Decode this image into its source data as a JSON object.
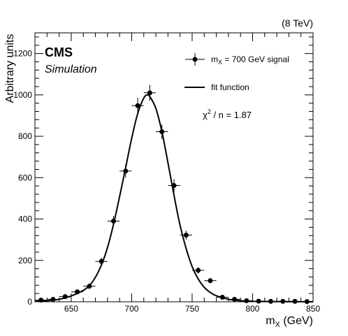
{
  "chart_data": {
    "type": "scatter",
    "energy_label": "(8 TeV)",
    "experiment_label": "CMS",
    "experiment_sublabel": "Simulation",
    "xlabel": "m",
    "xlabel_sub": "X",
    "xlabel_unit": "(GeV)",
    "ylabel": "Arbitrary units",
    "xlim": [
      620,
      850
    ],
    "ylim": [
      0,
      1300
    ],
    "xticks": [
      650,
      700,
      750,
      800,
      850
    ],
    "yticks": [
      0,
      200,
      400,
      600,
      800,
      1000,
      1200
    ],
    "legend": {
      "placement": "top-right",
      "signal_pre": "m",
      "signal_sub": "X",
      "signal_post": " = 700 GeV signal",
      "fit_label": "fit function"
    },
    "chi2_label": "χ",
    "chi2_sup": "2",
    "chi2_rest": " / n = 1.87",
    "series": [
      {
        "kind": "points",
        "x": [
          625,
          635,
          645,
          655,
          665,
          675,
          685,
          695,
          705,
          715,
          725,
          735,
          745,
          755,
          765,
          775,
          785,
          795,
          805,
          815,
          825,
          835,
          845
        ],
        "y": [
          8,
          12,
          25,
          48,
          75,
          195,
          390,
          632,
          948,
          1010,
          822,
          562,
          322,
          152,
          102,
          22,
          12,
          5,
          3,
          2,
          2,
          2,
          1
        ],
        "yerr": [
          4,
          5,
          7,
          10,
          12,
          18,
          25,
          32,
          38,
          38,
          35,
          30,
          22,
          15,
          12,
          6,
          4,
          3,
          2,
          2,
          2,
          2,
          1
        ]
      },
      {
        "kind": "fit",
        "x": [
          620,
          630,
          640,
          650,
          660,
          665,
          670,
          675,
          680,
          685,
          690,
          695,
          700,
          705,
          710,
          713,
          715,
          720,
          725,
          730,
          735,
          740,
          745,
          750,
          755,
          760,
          765,
          770,
          780,
          790,
          800,
          820,
          850
        ],
        "y": [
          2,
          5,
          12,
          28,
          55,
          78,
          118,
          178,
          262,
          375,
          508,
          648,
          790,
          910,
          985,
          1000,
          992,
          935,
          822,
          672,
          515,
          370,
          258,
          170,
          110,
          70,
          45,
          29,
          12,
          5,
          2,
          1,
          0
        ]
      }
    ]
  }
}
